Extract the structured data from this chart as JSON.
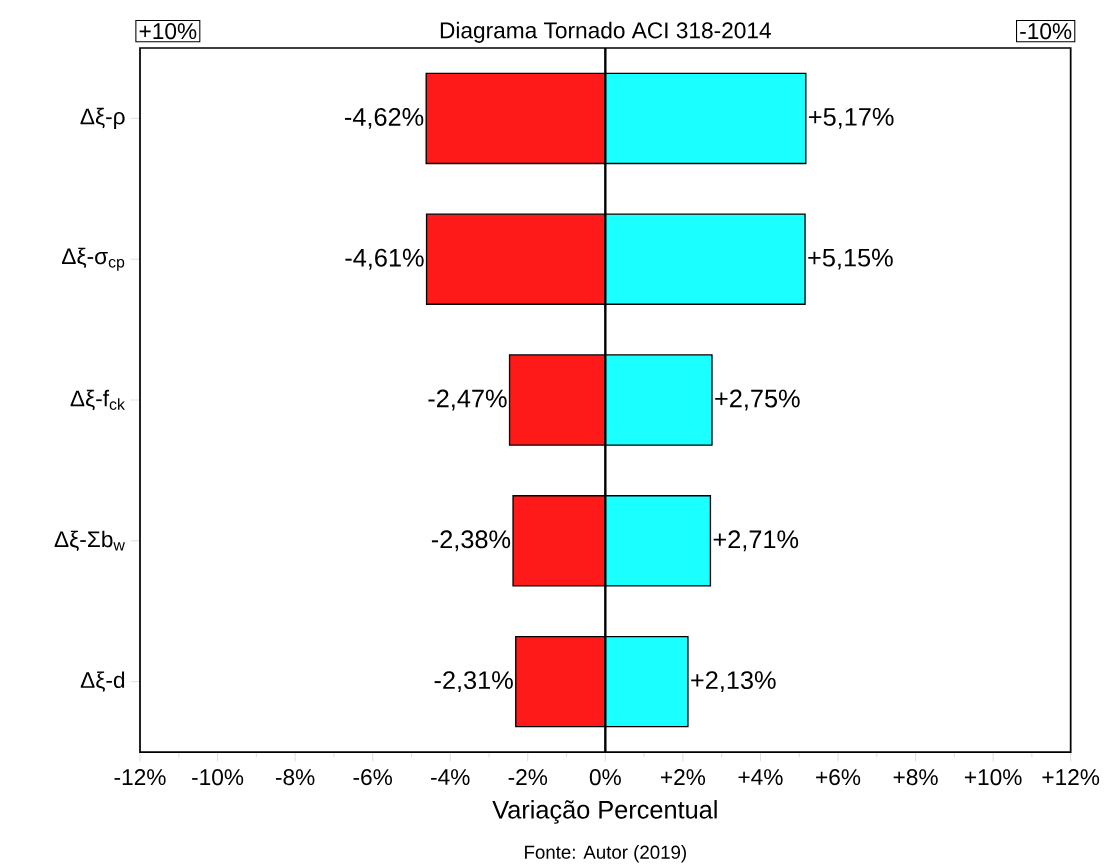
{
  "chart_data": {
    "type": "bar",
    "orientation": "horizontal",
    "title": "Diagrama Tornado ACI 318-2014",
    "xlabel": "Variação Percentual",
    "categories": [
      "Δξ-ρ",
      "Δξ-σ$_{cp}$",
      "Δξ-f$_{ck}$",
      "Δξ-Σb$_{w}$",
      "Δξ-d"
    ],
    "series": [
      {
        "color": "#ff1a1a",
        "values": [
          -4.62,
          -4.61,
          -2.47,
          -2.38,
          -2.31
        ],
        "value_labels": [
          "-4,62%",
          "-4,61%",
          "-2,47%",
          "-2,38%",
          "-2,31%"
        ]
      },
      {
        "color": "#1affff",
        "values": [
          5.17,
          5.15,
          2.75,
          2.71,
          2.13
        ],
        "value_labels": [
          "+5,17%",
          "+5,15%",
          "+2,75%",
          "+2,71%",
          "+2,13%"
        ]
      }
    ],
    "xlim": [
      -12,
      12
    ],
    "xticks": [
      {
        "value": -12,
        "label": "-12%"
      },
      {
        "value": -10,
        "label": "-10%"
      },
      {
        "value": -8,
        "label": "-8%"
      },
      {
        "value": -6,
        "label": "-6%"
      },
      {
        "value": -4,
        "label": "-4%"
      },
      {
        "value": -2,
        "label": "-2%"
      },
      {
        "value": 0,
        "label": "0%"
      },
      {
        "value": 2,
        "label": "+2%"
      },
      {
        "value": 4,
        "label": "+4%"
      },
      {
        "value": 6,
        "label": "+6%"
      },
      {
        "value": 8,
        "label": "+8%"
      },
      {
        "value": 10,
        "label": "+10%"
      },
      {
        "value": 12,
        "label": "+12%"
      }
    ],
    "ref_lines": [
      {
        "axis": "x",
        "value": 0
      }
    ],
    "annotations": [
      "+10%",
      "-10%",
      "Fonte: Autor (2019)"
    ],
    "stacked": true,
    "grid": false
  }
}
